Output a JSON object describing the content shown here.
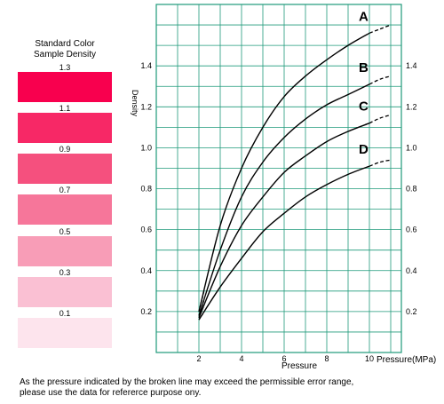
{
  "swatch_panel": {
    "title_line1": "Standard Color",
    "title_line2": "Sample Density",
    "swatches": [
      {
        "label": "1.3",
        "color": "#f8004e"
      },
      {
        "label": "1.1",
        "color": "#f72866"
      },
      {
        "label": "0.9",
        "color": "#f5507e"
      },
      {
        "label": "0.7",
        "color": "#f6769a"
      },
      {
        "label": "0.5",
        "color": "#f89db7"
      },
      {
        "label": "0.3",
        "color": "#fac0d3"
      },
      {
        "label": "0.1",
        "color": "#fde4ed"
      }
    ]
  },
  "chart_data": {
    "type": "line",
    "title": "",
    "xlabel": "Pressure",
    "xlabel_end": "Pressure(MPa)",
    "ylabel": "Density",
    "xlim": [
      0,
      11.5
    ],
    "ylim": [
      0,
      1.7
    ],
    "x_ticks": [
      "2",
      "4",
      "6",
      "8",
      "10"
    ],
    "y_ticks": [
      "0.2",
      "0.4",
      "0.6",
      "0.8",
      "1.0",
      "1.2",
      "1.4"
    ],
    "grid": true,
    "grid_color": "#1f9a7a",
    "line_color": "#000000",
    "series": [
      {
        "name": "A",
        "solid": [
          [
            2,
            0.2
          ],
          [
            3,
            0.62
          ],
          [
            4,
            0.9
          ],
          [
            5,
            1.1
          ],
          [
            6,
            1.25
          ],
          [
            7,
            1.35
          ],
          [
            8,
            1.43
          ],
          [
            9,
            1.5
          ],
          [
            10,
            1.56
          ]
        ],
        "dashed": [
          [
            10,
            1.56
          ],
          [
            10.5,
            1.58
          ],
          [
            11,
            1.6
          ]
        ]
      },
      {
        "name": "B",
        "solid": [
          [
            2,
            0.18
          ],
          [
            3,
            0.5
          ],
          [
            4,
            0.76
          ],
          [
            5,
            0.93
          ],
          [
            6,
            1.05
          ],
          [
            7,
            1.14
          ],
          [
            8,
            1.21
          ],
          [
            9,
            1.26
          ],
          [
            10,
            1.31
          ]
        ],
        "dashed": [
          [
            10,
            1.31
          ],
          [
            10.5,
            1.335
          ],
          [
            11,
            1.35
          ]
        ]
      },
      {
        "name": "C",
        "solid": [
          [
            2,
            0.17
          ],
          [
            3,
            0.42
          ],
          [
            4,
            0.62
          ],
          [
            5,
            0.76
          ],
          [
            6,
            0.88
          ],
          [
            7,
            0.96
          ],
          [
            8,
            1.03
          ],
          [
            9,
            1.08
          ],
          [
            10,
            1.12
          ]
        ],
        "dashed": [
          [
            10,
            1.12
          ],
          [
            10.5,
            1.145
          ],
          [
            11,
            1.16
          ]
        ]
      },
      {
        "name": "D",
        "solid": [
          [
            2,
            0.16
          ],
          [
            3,
            0.32
          ],
          [
            4,
            0.46
          ],
          [
            5,
            0.59
          ],
          [
            6,
            0.68
          ],
          [
            7,
            0.76
          ],
          [
            8,
            0.82
          ],
          [
            9,
            0.87
          ],
          [
            10,
            0.91
          ]
        ],
        "dashed": [
          [
            10,
            0.91
          ],
          [
            10.5,
            0.93
          ],
          [
            11,
            0.94
          ]
        ]
      }
    ]
  },
  "note": {
    "line1": "As the pressure indicated by the broken line may exceed the permissible error range,",
    "line2": "please use the data for refererce purpose ony."
  }
}
